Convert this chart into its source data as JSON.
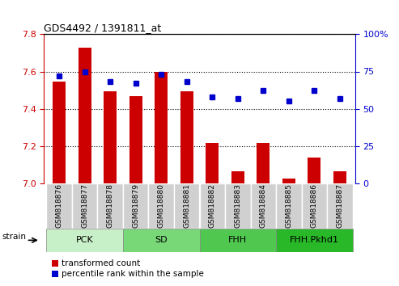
{
  "title": "GDS4492 / 1391811_at",
  "samples": [
    "GSM818876",
    "GSM818877",
    "GSM818878",
    "GSM818879",
    "GSM818880",
    "GSM818881",
    "GSM818882",
    "GSM818883",
    "GSM818884",
    "GSM818885",
    "GSM818886",
    "GSM818887"
  ],
  "red_values": [
    7.545,
    7.73,
    7.495,
    7.468,
    7.6,
    7.495,
    7.215,
    7.065,
    7.215,
    7.025,
    7.135,
    7.065
  ],
  "blue_values": [
    72,
    75,
    68,
    67,
    73,
    68,
    58,
    57,
    62,
    55,
    62,
    57
  ],
  "group_boundaries": [
    {
      "label": "PCK",
      "start": 0,
      "end": 3,
      "color": "#c8f0c8"
    },
    {
      "label": "SD",
      "start": 3,
      "end": 6,
      "color": "#78d878"
    },
    {
      "label": "FHH",
      "start": 6,
      "end": 9,
      "color": "#50c850"
    },
    {
      "label": "FHH.Pkhd1",
      "start": 9,
      "end": 12,
      "color": "#28b828"
    }
  ],
  "ylim_left": [
    7.0,
    7.8
  ],
  "ylim_right": [
    0,
    100
  ],
  "yticks_left": [
    7.0,
    7.2,
    7.4,
    7.6,
    7.8
  ],
  "yticks_right": [
    0,
    25,
    50,
    75,
    100
  ],
  "ytick_labels_right": [
    "0",
    "25",
    "50",
    "75",
    "100%"
  ],
  "bar_color": "#cc0000",
  "dot_color": "#0000cc",
  "xtick_bg_color": "#d0d0d0",
  "strain_label": "strain",
  "bar_width": 0.5,
  "xlim": [
    -0.6,
    11.6
  ]
}
